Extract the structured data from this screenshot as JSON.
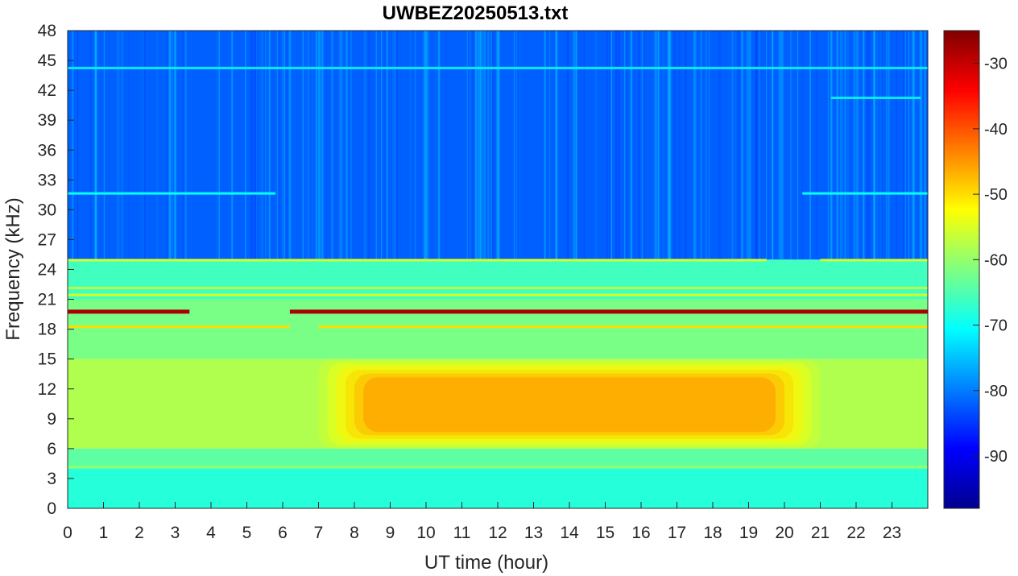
{
  "chart_data": {
    "type": "heatmap",
    "title": "UWBEZ20250513.txt",
    "xlabel": "UT time (hour)",
    "ylabel": "Frequency (kHz)",
    "xlim": [
      0,
      24
    ],
    "ylim": [
      0,
      48
    ],
    "x_ticks": [
      "0",
      "1",
      "2",
      "3",
      "4",
      "5",
      "6",
      "7",
      "8",
      "9",
      "10",
      "11",
      "12",
      "13",
      "14",
      "15",
      "16",
      "17",
      "18",
      "19",
      "20",
      "21",
      "22",
      "23"
    ],
    "y_ticks": [
      "0",
      "3",
      "6",
      "9",
      "12",
      "15",
      "18",
      "21",
      "24",
      "27",
      "30",
      "33",
      "36",
      "39",
      "42",
      "45",
      "48"
    ],
    "colorbar": {
      "colormap": "jet",
      "range": [
        -98,
        -25
      ],
      "ticks": [
        "-30",
        "-40",
        "-50",
        "-60",
        "-70",
        "-80",
        "-90"
      ],
      "tick_values": [
        -30,
        -40,
        -50,
        -60,
        -70,
        -80,
        -90
      ]
    },
    "features": {
      "background_by_band": [
        {
          "freq_khz": [
            0,
            4
          ],
          "level_db": -68
        },
        {
          "freq_khz": [
            4,
            6
          ],
          "level_db": -64
        },
        {
          "freq_khz": [
            6,
            15
          ],
          "level_db": -58
        },
        {
          "freq_khz": [
            15,
            21
          ],
          "level_db": -62
        },
        {
          "freq_khz": [
            21,
            25
          ],
          "level_db": -66
        },
        {
          "freq_khz": [
            25,
            48
          ],
          "level_db": -82
        }
      ],
      "daytime_enhancement": {
        "time_h": [
          7,
          21
        ],
        "freq_khz": [
          6,
          15
        ],
        "peak_level_db": -45
      },
      "transmitter_lines": [
        {
          "freq_khz": 19.8,
          "level_db": -28,
          "segments_h": [
            [
              0,
              3.4
            ],
            [
              6.2,
              24
            ]
          ]
        },
        {
          "freq_khz": 18.2,
          "level_db": -50,
          "segments_h": [
            [
              0,
              6.2
            ],
            [
              7,
              24
            ]
          ]
        },
        {
          "freq_khz": 21.4,
          "level_db": -55,
          "segments_h": [
            [
              0,
              24
            ]
          ]
        },
        {
          "freq_khz": 22.1,
          "level_db": -57,
          "segments_h": [
            [
              0,
              24
            ]
          ]
        },
        {
          "freq_khz": 24.9,
          "level_db": -55,
          "segments_h": [
            [
              0,
              19.5
            ],
            [
              21,
              24
            ]
          ]
        },
        {
          "freq_khz": 4.1,
          "level_db": -60,
          "segments_h": [
            [
              0,
              24
            ]
          ]
        },
        {
          "freq_khz": 31.6,
          "level_db": -70,
          "segments_h": [
            [
              0,
              5.8
            ],
            [
              20.5,
              24
            ]
          ]
        },
        {
          "freq_khz": 44.2,
          "level_db": -72,
          "segments_h": [
            [
              0,
              24
            ]
          ]
        },
        {
          "freq_khz": 41.2,
          "level_db": -72,
          "segments_h": [
            [
              21.3,
              23.8
            ]
          ]
        }
      ]
    }
  }
}
